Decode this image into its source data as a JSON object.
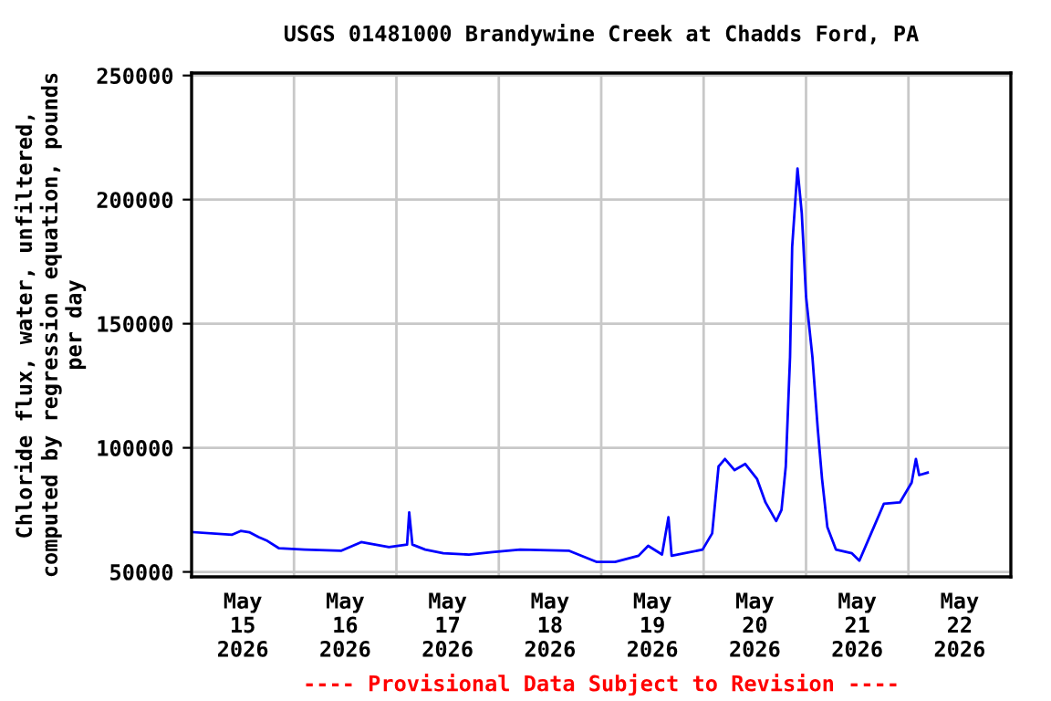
{
  "chart_data": {
    "type": "line",
    "title": "USGS 01481000 Brandywine Creek at Chadds Ford, PA",
    "ylabel": "Chloride flux, water, unfiltered,\ncomputed by regression equation, pounds\nper day",
    "annotations": [
      "---- Provisional Data Subject to Revision ----"
    ],
    "x": [
      "2026-05-15T00:30",
      "2026-05-15T09:30",
      "2026-05-15T11:30",
      "2026-05-15T13:30",
      "2026-05-15T15:45",
      "2026-05-15T17:45",
      "2026-05-15T20:30",
      "2026-05-16T02:30",
      "2026-05-16T11:00",
      "2026-05-16T15:45",
      "2026-05-16T22:15",
      "2026-05-17T02:30",
      "2026-05-17T03:00",
      "2026-05-17T03:45",
      "2026-05-17T06:45",
      "2026-05-17T11:00",
      "2026-05-17T17:00",
      "2026-05-17T22:30",
      "2026-05-18T05:00",
      "2026-05-18T16:30",
      "2026-05-18T23:00",
      "2026-05-19T03:15",
      "2026-05-19T08:45",
      "2026-05-19T11:00",
      "2026-05-19T14:15",
      "2026-05-19T15:45",
      "2026-05-19T16:30",
      "2026-05-19T23:45",
      "2026-05-20T02:00",
      "2026-05-20T03:30",
      "2026-05-20T05:00",
      "2026-05-20T07:15",
      "2026-05-20T09:45",
      "2026-05-20T12:30",
      "2026-05-20T14:30",
      "2026-05-20T17:00",
      "2026-05-20T18:15",
      "2026-05-20T19:15",
      "2026-05-20T20:15",
      "2026-05-20T20:45",
      "2026-05-20T22:00",
      "2026-05-20T23:00",
      "2026-05-21T00:00",
      "2026-05-21T01:30",
      "2026-05-21T02:45",
      "2026-05-21T03:45",
      "2026-05-21T05:00",
      "2026-05-21T07:00",
      "2026-05-21T10:45",
      "2026-05-21T12:30",
      "2026-05-21T15:15",
      "2026-05-21T18:15",
      "2026-05-21T22:00",
      "2026-05-22T00:45",
      "2026-05-22T01:45",
      "2026-05-22T02:30",
      "2026-05-22T04:30"
    ],
    "series": [
      {
        "color": "#0000ff",
        "values": [
          66000,
          65000,
          66500,
          66000,
          64000,
          62500,
          59500,
          59000,
          58500,
          62000,
          60000,
          61000,
          74000,
          61000,
          59000,
          57500,
          57000,
          58000,
          59000,
          58500,
          54000,
          54000,
          56500,
          60500,
          57000,
          72000,
          56500,
          59000,
          65500,
          92500,
          95500,
          91000,
          93500,
          87500,
          78000,
          70500,
          75000,
          92500,
          136500,
          181000,
          212500,
          194500,
          161000,
          136500,
          107500,
          87500,
          68000,
          59000,
          57500,
          54500,
          65500,
          77500,
          78000,
          86000,
          95500,
          89000,
          90000
        ]
      }
    ],
    "xlim": [
      "2026-05-15",
      "2026-05-23"
    ],
    "xticks": [
      {
        "value": "2026-05-15",
        "label": null
      },
      {
        "value": "2026-05-15T12:00",
        "label": "May\n15\n2026"
      },
      {
        "value": "2026-05-16",
        "label": null
      },
      {
        "value": "2026-05-16T12:00",
        "label": "May\n16\n2026"
      },
      {
        "value": "2026-05-17",
        "label": null
      },
      {
        "value": "2026-05-17T12:00",
        "label": "May\n17\n2026"
      },
      {
        "value": "2026-05-18",
        "label": null
      },
      {
        "value": "2026-05-18T12:00",
        "label": "May\n18\n2026"
      },
      {
        "value": "2026-05-19",
        "label": null
      },
      {
        "value": "2026-05-19T12:00",
        "label": "May\n19\n2026"
      },
      {
        "value": "2026-05-20",
        "label": null
      },
      {
        "value": "2026-05-20T12:00",
        "label": "May\n20\n2026"
      },
      {
        "value": "2026-05-21",
        "label": null
      },
      {
        "value": "2026-05-21T12:00",
        "label": "May\n21\n2026"
      },
      {
        "value": "2026-05-22",
        "label": null
      },
      {
        "value": "2026-05-22T12:00",
        "label": "May\n22\n2026"
      },
      {
        "value": "2026-05-23",
        "label": null
      }
    ],
    "ylim": [
      48000,
      251000
    ],
    "yticks": [
      50000,
      100000,
      150000,
      200000,
      250000
    ],
    "grid": true,
    "legend": false
  }
}
